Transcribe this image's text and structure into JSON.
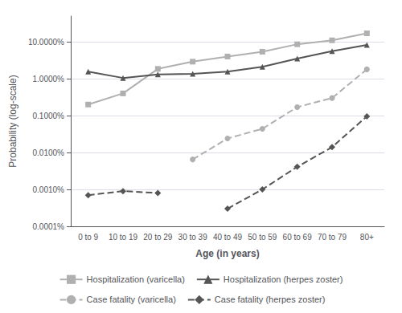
{
  "chart_data": {
    "type": "line",
    "categories": [
      "0 to 9",
      "10 to 19",
      "20 to 29",
      "30 to 39",
      "40 to 49",
      "50 to 59",
      "60 to 69",
      "70 to 79",
      "80+"
    ],
    "series": [
      {
        "name": "Hospitalization (varicella)",
        "color": "#b0b0b0",
        "marker": "square",
        "line_style": "solid",
        "values": [
          0.002,
          0.004,
          0.0185,
          0.029,
          0.04,
          0.054,
          0.086,
          0.11,
          0.17
        ]
      },
      {
        "name": "Hospitalization (herpes zoster)",
        "color": "#555555",
        "marker": "triangle",
        "line_style": "solid",
        "values": [
          0.0155,
          0.0105,
          0.013,
          0.0135,
          0.0155,
          0.021,
          0.035,
          0.056,
          0.082
        ]
      },
      {
        "name": "Case fatality (varicella)",
        "color": "#b0b0b0",
        "marker": "circle",
        "line_style": "dashed",
        "values": [
          null,
          null,
          null,
          6.5e-05,
          0.00024,
          0.00044,
          0.0017,
          0.003,
          0.018
        ]
      },
      {
        "name": "Case fatality (herpes zoster)",
        "color": "#555555",
        "marker": "diamond",
        "line_style": "dashed",
        "values": [
          7e-06,
          9e-06,
          8e-06,
          null,
          3e-06,
          1e-05,
          4.1e-05,
          0.00014,
          0.00096
        ]
      }
    ],
    "xlabel": "Age (in years)",
    "ylabel": "Probability (log-scale)",
    "log": "y",
    "ylim": [
      1e-06,
      0.5
    ],
    "yticks": [
      {
        "value": 1e-06,
        "label": "0.0001%"
      },
      {
        "value": 1e-05,
        "label": "0.0010%"
      },
      {
        "value": 0.0001,
        "label": "0.0100%"
      },
      {
        "value": 0.001,
        "label": "0.1000%"
      },
      {
        "value": 0.01,
        "label": "1.0000%"
      },
      {
        "value": 0.1,
        "label": "10.0000%"
      }
    ],
    "grid": true,
    "legend": "bottom"
  }
}
